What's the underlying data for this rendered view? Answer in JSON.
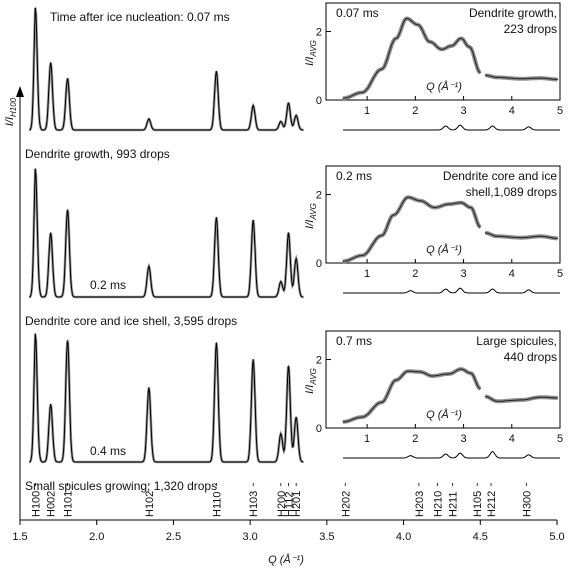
{
  "figure": {
    "time_prefix": "Time after ice nucleation: ",
    "main_xlabel": "Q (Å⁻¹)",
    "main_ylabel": "I/I",
    "main_ylabel_sub": "H100",
    "inset_ylabel": "I/I",
    "inset_ylabel_sub": "AVG",
    "inset_xlabel": "Q (Å⁻¹)"
  },
  "chart_data": {
    "type": "line",
    "x_axis": {
      "label": "Q (Å⁻¹)",
      "range": [
        1.5,
        5.0
      ],
      "ticks": [
        1.5,
        2.0,
        2.5,
        3.0,
        3.5,
        4.0,
        4.5,
        5.0
      ],
      "tick_labels": [
        "1.5",
        "2.0",
        "2.5",
        "3.0",
        "3.5",
        "4.0",
        "4.5",
        "5.0"
      ]
    },
    "y_axis_label": "I/IH100",
    "reflections": [
      {
        "label": "H100",
        "q": 1.6
      },
      {
        "label": "H002",
        "q": 1.7
      },
      {
        "label": "H101",
        "q": 1.81
      },
      {
        "label": "H102",
        "q": 2.34
      },
      {
        "label": "H110",
        "q": 2.78
      },
      {
        "label": "H103",
        "q": 3.02
      },
      {
        "label": "H200",
        "q": 3.2
      },
      {
        "label": "H112",
        "q": 3.25
      },
      {
        "label": "H201",
        "q": 3.3
      },
      {
        "label": "H202",
        "q": 3.62
      },
      {
        "label": "H203",
        "q": 4.1
      },
      {
        "label": "H210",
        "q": 4.22
      },
      {
        "label": "H211",
        "q": 4.32
      },
      {
        "label": "H105",
        "q": 4.48
      },
      {
        "label": "H212",
        "q": 4.57
      },
      {
        "label": "H300",
        "q": 4.8
      }
    ],
    "panels": [
      {
        "time": "0.07 ms",
        "main_label": "Dendrite growth, 993 drops",
        "peaks": [
          [
            1.6,
            1.0
          ],
          [
            1.7,
            0.55
          ],
          [
            1.81,
            0.42
          ],
          [
            2.34,
            0.09
          ],
          [
            2.78,
            0.48
          ],
          [
            3.02,
            0.2
          ],
          [
            3.2,
            0.07
          ],
          [
            3.25,
            0.22
          ],
          [
            3.3,
            0.12
          ]
        ],
        "inset": {
          "label_line1": "Dendrite growth,",
          "label_line2": "223 drops",
          "time": "0.07 ms",
          "x_ticks": [
            1,
            2,
            3,
            4,
            5
          ],
          "y_ticks": [
            0,
            2
          ],
          "y_range": [
            0,
            2.6
          ],
          "curve": [
            [
              0.5,
              0.05
            ],
            [
              0.9,
              0.22
            ],
            [
              1.3,
              0.9
            ],
            [
              1.6,
              1.8
            ],
            [
              1.82,
              2.38
            ],
            [
              2.05,
              2.2
            ],
            [
              2.3,
              1.7
            ],
            [
              2.55,
              1.48
            ],
            [
              2.75,
              1.58
            ],
            [
              2.95,
              1.8
            ],
            [
              3.12,
              1.55
            ],
            [
              3.35,
              0.8
            ]
          ],
          "curve2": [
            [
              3.45,
              0.72
            ],
            [
              3.7,
              0.66
            ],
            [
              4.2,
              0.62
            ],
            [
              4.6,
              0.64
            ],
            [
              4.95,
              0.6
            ]
          ],
          "lower_peaks": [
            [
              2.63,
              0.1
            ],
            [
              2.93,
              0.12
            ],
            [
              3.6,
              0.1
            ],
            [
              4.35,
              0.08
            ]
          ]
        }
      },
      {
        "time": "0.2 ms",
        "main_label": "Dendrite core and ice shell, 3,595 drops",
        "peaks": [
          [
            1.6,
            1.0
          ],
          [
            1.7,
            0.5
          ],
          [
            1.81,
            0.68
          ],
          [
            2.34,
            0.24
          ],
          [
            2.78,
            0.62
          ],
          [
            3.02,
            0.6
          ],
          [
            3.2,
            0.12
          ],
          [
            3.25,
            0.5
          ],
          [
            3.3,
            0.3
          ]
        ],
        "inset": {
          "label_line1": "Dendrite core and ice",
          "label_line2": "shell,1,089 drops",
          "time": "0.2 ms",
          "x_ticks": [
            1,
            2,
            3,
            4,
            5
          ],
          "y_ticks": [
            0,
            2
          ],
          "y_range": [
            0,
            2.6
          ],
          "curve": [
            [
              0.5,
              0.05
            ],
            [
              0.9,
              0.22
            ],
            [
              1.3,
              0.8
            ],
            [
              1.55,
              1.4
            ],
            [
              1.85,
              1.92
            ],
            [
              2.1,
              1.82
            ],
            [
              2.4,
              1.62
            ],
            [
              2.7,
              1.72
            ],
            [
              2.95,
              1.76
            ],
            [
              3.15,
              1.62
            ],
            [
              3.35,
              1.05
            ]
          ],
          "curve2": [
            [
              3.45,
              0.88
            ],
            [
              3.7,
              0.78
            ],
            [
              4.2,
              0.74
            ],
            [
              4.6,
              0.78
            ],
            [
              4.95,
              0.72
            ]
          ],
          "lower_peaks": [
            [
              1.9,
              0.06
            ],
            [
              2.63,
              0.1
            ],
            [
              2.93,
              0.12
            ],
            [
              3.6,
              0.1
            ],
            [
              4.35,
              0.08
            ]
          ]
        }
      },
      {
        "time": "0.4 ms",
        "main_label": "Small spicules growing, 1,320 drops",
        "peaks": [
          [
            1.6,
            1.0
          ],
          [
            1.7,
            0.45
          ],
          [
            1.81,
            0.95
          ],
          [
            2.34,
            0.58
          ],
          [
            2.78,
            0.93
          ],
          [
            3.02,
            0.8
          ],
          [
            3.2,
            0.22
          ],
          [
            3.25,
            0.75
          ],
          [
            3.3,
            0.35
          ]
        ],
        "inset": {
          "label_line1": "Large spicules,",
          "label_line2": "440 drops",
          "time": "0.7 ms",
          "x_ticks": [
            1,
            2,
            3,
            4,
            5
          ],
          "y_ticks": [
            0,
            2
          ],
          "y_range": [
            0,
            2.6
          ],
          "curve": [
            [
              0.5,
              0.18
            ],
            [
              0.9,
              0.32
            ],
            [
              1.3,
              0.75
            ],
            [
              1.6,
              1.4
            ],
            [
              1.85,
              1.66
            ],
            [
              2.1,
              1.64
            ],
            [
              2.35,
              1.52
            ],
            [
              2.7,
              1.58
            ],
            [
              2.95,
              1.72
            ],
            [
              3.15,
              1.6
            ],
            [
              3.35,
              1.15
            ]
          ],
          "curve2": [
            [
              3.45,
              0.92
            ],
            [
              3.7,
              0.78
            ],
            [
              4.2,
              0.82
            ],
            [
              4.6,
              0.9
            ],
            [
              4.95,
              0.88
            ]
          ],
          "lower_peaks": [
            [
              1.9,
              0.06
            ],
            [
              2.63,
              0.1
            ],
            [
              2.93,
              0.12
            ],
            [
              3.6,
              0.16
            ],
            [
              4.35,
              0.08
            ]
          ]
        }
      }
    ]
  }
}
